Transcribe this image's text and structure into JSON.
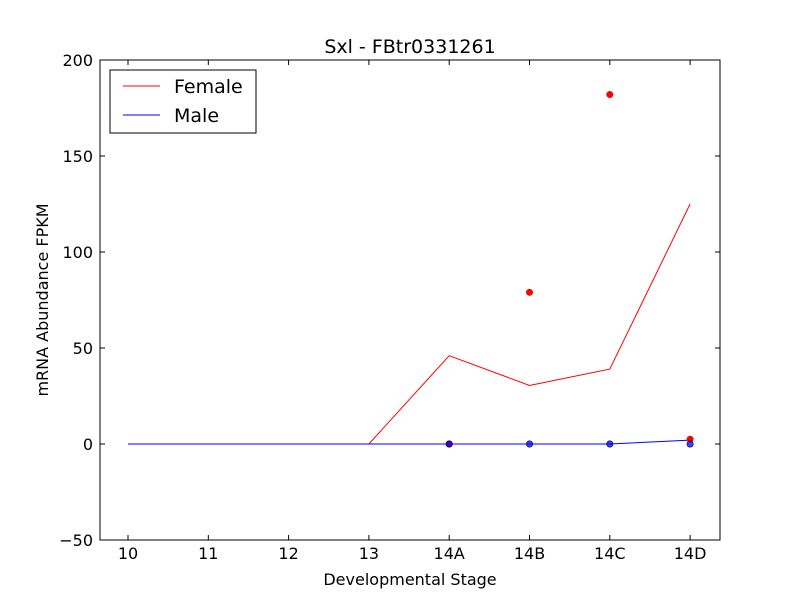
{
  "chart_data": {
    "type": "line",
    "title": "Sxl - FBtr0331261",
    "xlabel": "Developmental Stage",
    "ylabel": "mRNA Abundance FPKM",
    "categories": [
      "10",
      "11",
      "12",
      "13",
      "14A",
      "14B",
      "14C",
      "14D"
    ],
    "ylim": [
      -50,
      200
    ],
    "yticks": [
      -50,
      0,
      50,
      100,
      150,
      200
    ],
    "grid": false,
    "legend_position": "top-left",
    "series": [
      {
        "name": "Female",
        "color": "#ff0000",
        "line": [
          0,
          0,
          0,
          0,
          46,
          30.5,
          39,
          125
        ],
        "points": [
          {
            "x": "14A",
            "y": 0
          },
          {
            "x": "14B",
            "y": 79
          },
          {
            "x": "14C",
            "y": 182
          },
          {
            "x": "14D",
            "y": 2.5
          }
        ]
      },
      {
        "name": "Male",
        "color": "#0000ff",
        "line": [
          0,
          0,
          0,
          0,
          0,
          0,
          0,
          2
        ],
        "points": [
          {
            "x": "14A",
            "y": 0
          },
          {
            "x": "14B",
            "y": 0
          },
          {
            "x": "14C",
            "y": 0
          },
          {
            "x": "14D",
            "y": 0
          }
        ]
      }
    ]
  }
}
